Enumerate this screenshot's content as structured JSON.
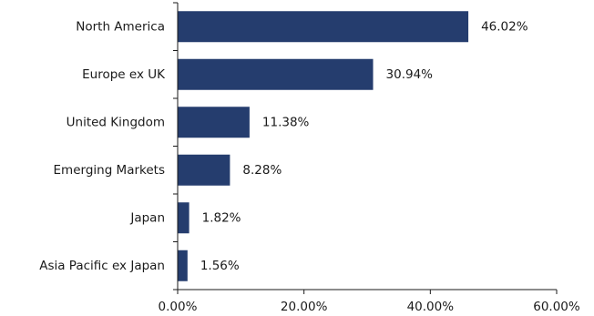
{
  "chart_data": {
    "type": "bar",
    "orientation": "horizontal",
    "categories": [
      "North America",
      "Europe ex UK",
      "United Kingdom",
      "Emerging Markets",
      "Japan",
      "Asia Pacific ex Japan"
    ],
    "values": [
      46.02,
      30.94,
      11.38,
      8.28,
      1.82,
      1.56
    ],
    "value_labels": [
      "46.02%",
      "30.94%",
      "11.38%",
      "8.28%",
      "1.82%",
      "1.56%"
    ],
    "xlim": [
      0,
      60
    ],
    "xticks": [
      0,
      20,
      40,
      60
    ],
    "xtick_labels": [
      "0.00%",
      "20.00%",
      "40.00%",
      "60.00%"
    ],
    "grid": false,
    "legend": "none",
    "title": "",
    "xlabel": "",
    "ylabel": ""
  },
  "colors": {
    "bar": "#253d6e",
    "text": "#1a1a1a",
    "axis": "#1a1a1a"
  }
}
